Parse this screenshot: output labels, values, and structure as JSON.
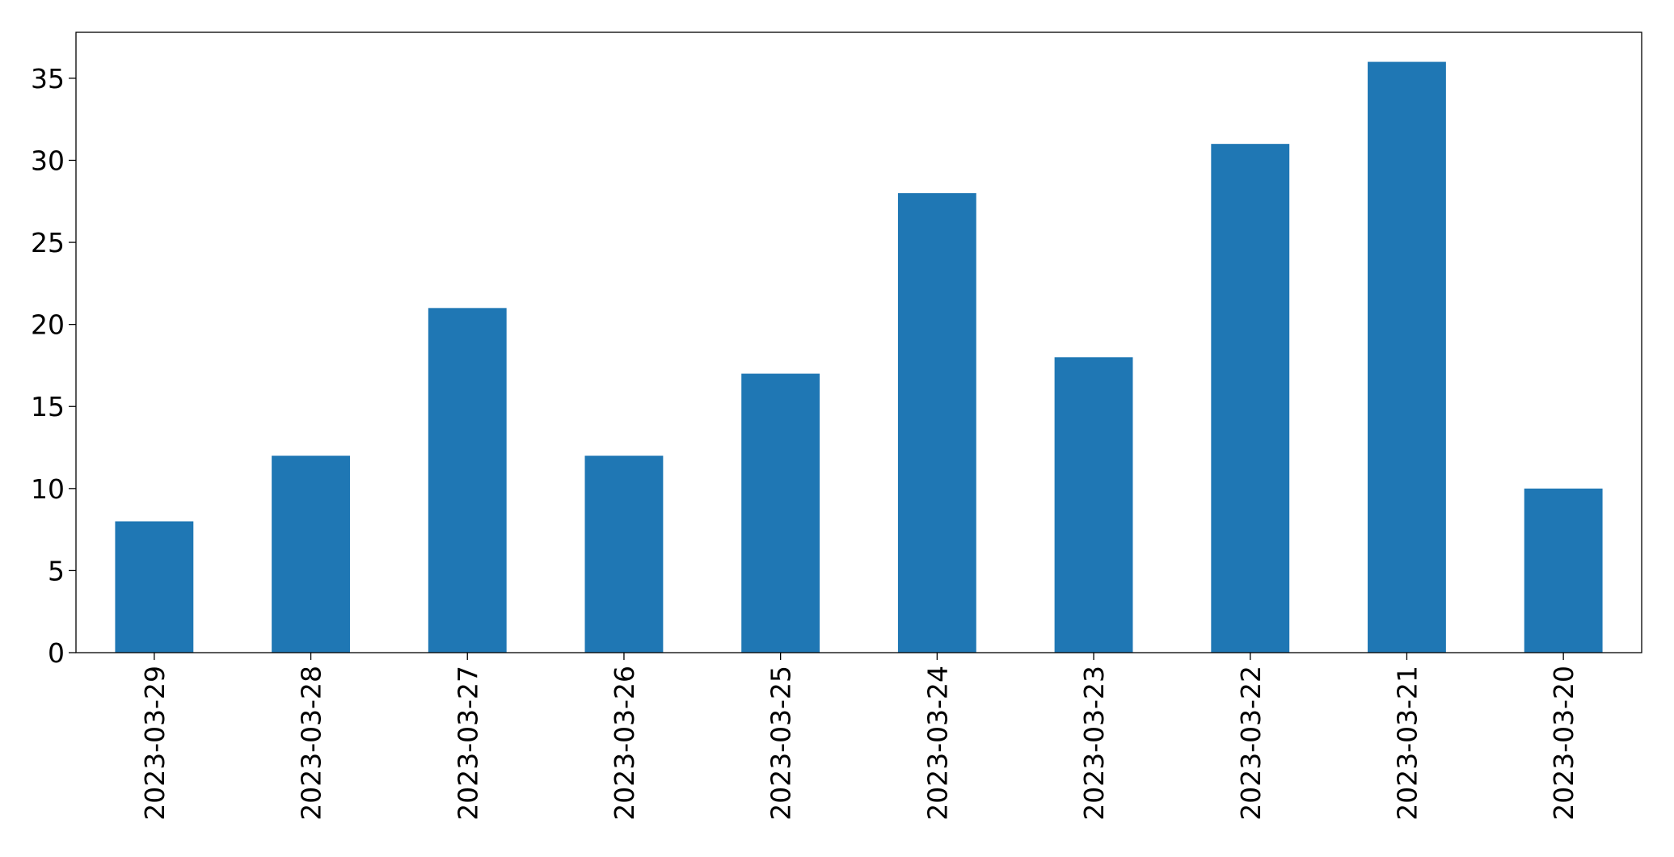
{
  "chart_data": {
    "type": "bar",
    "categories": [
      "2023-03-29",
      "2023-03-28",
      "2023-03-27",
      "2023-03-26",
      "2023-03-25",
      "2023-03-24",
      "2023-03-23",
      "2023-03-22",
      "2023-03-21",
      "2023-03-20"
    ],
    "values": [
      8,
      12,
      21,
      12,
      17,
      28,
      18,
      31,
      36,
      10
    ],
    "color": "#1f77b4",
    "ylim": [
      0,
      37.8
    ],
    "yticks": [
      0,
      5,
      10,
      15,
      20,
      25,
      30,
      35
    ],
    "grid": false
  }
}
